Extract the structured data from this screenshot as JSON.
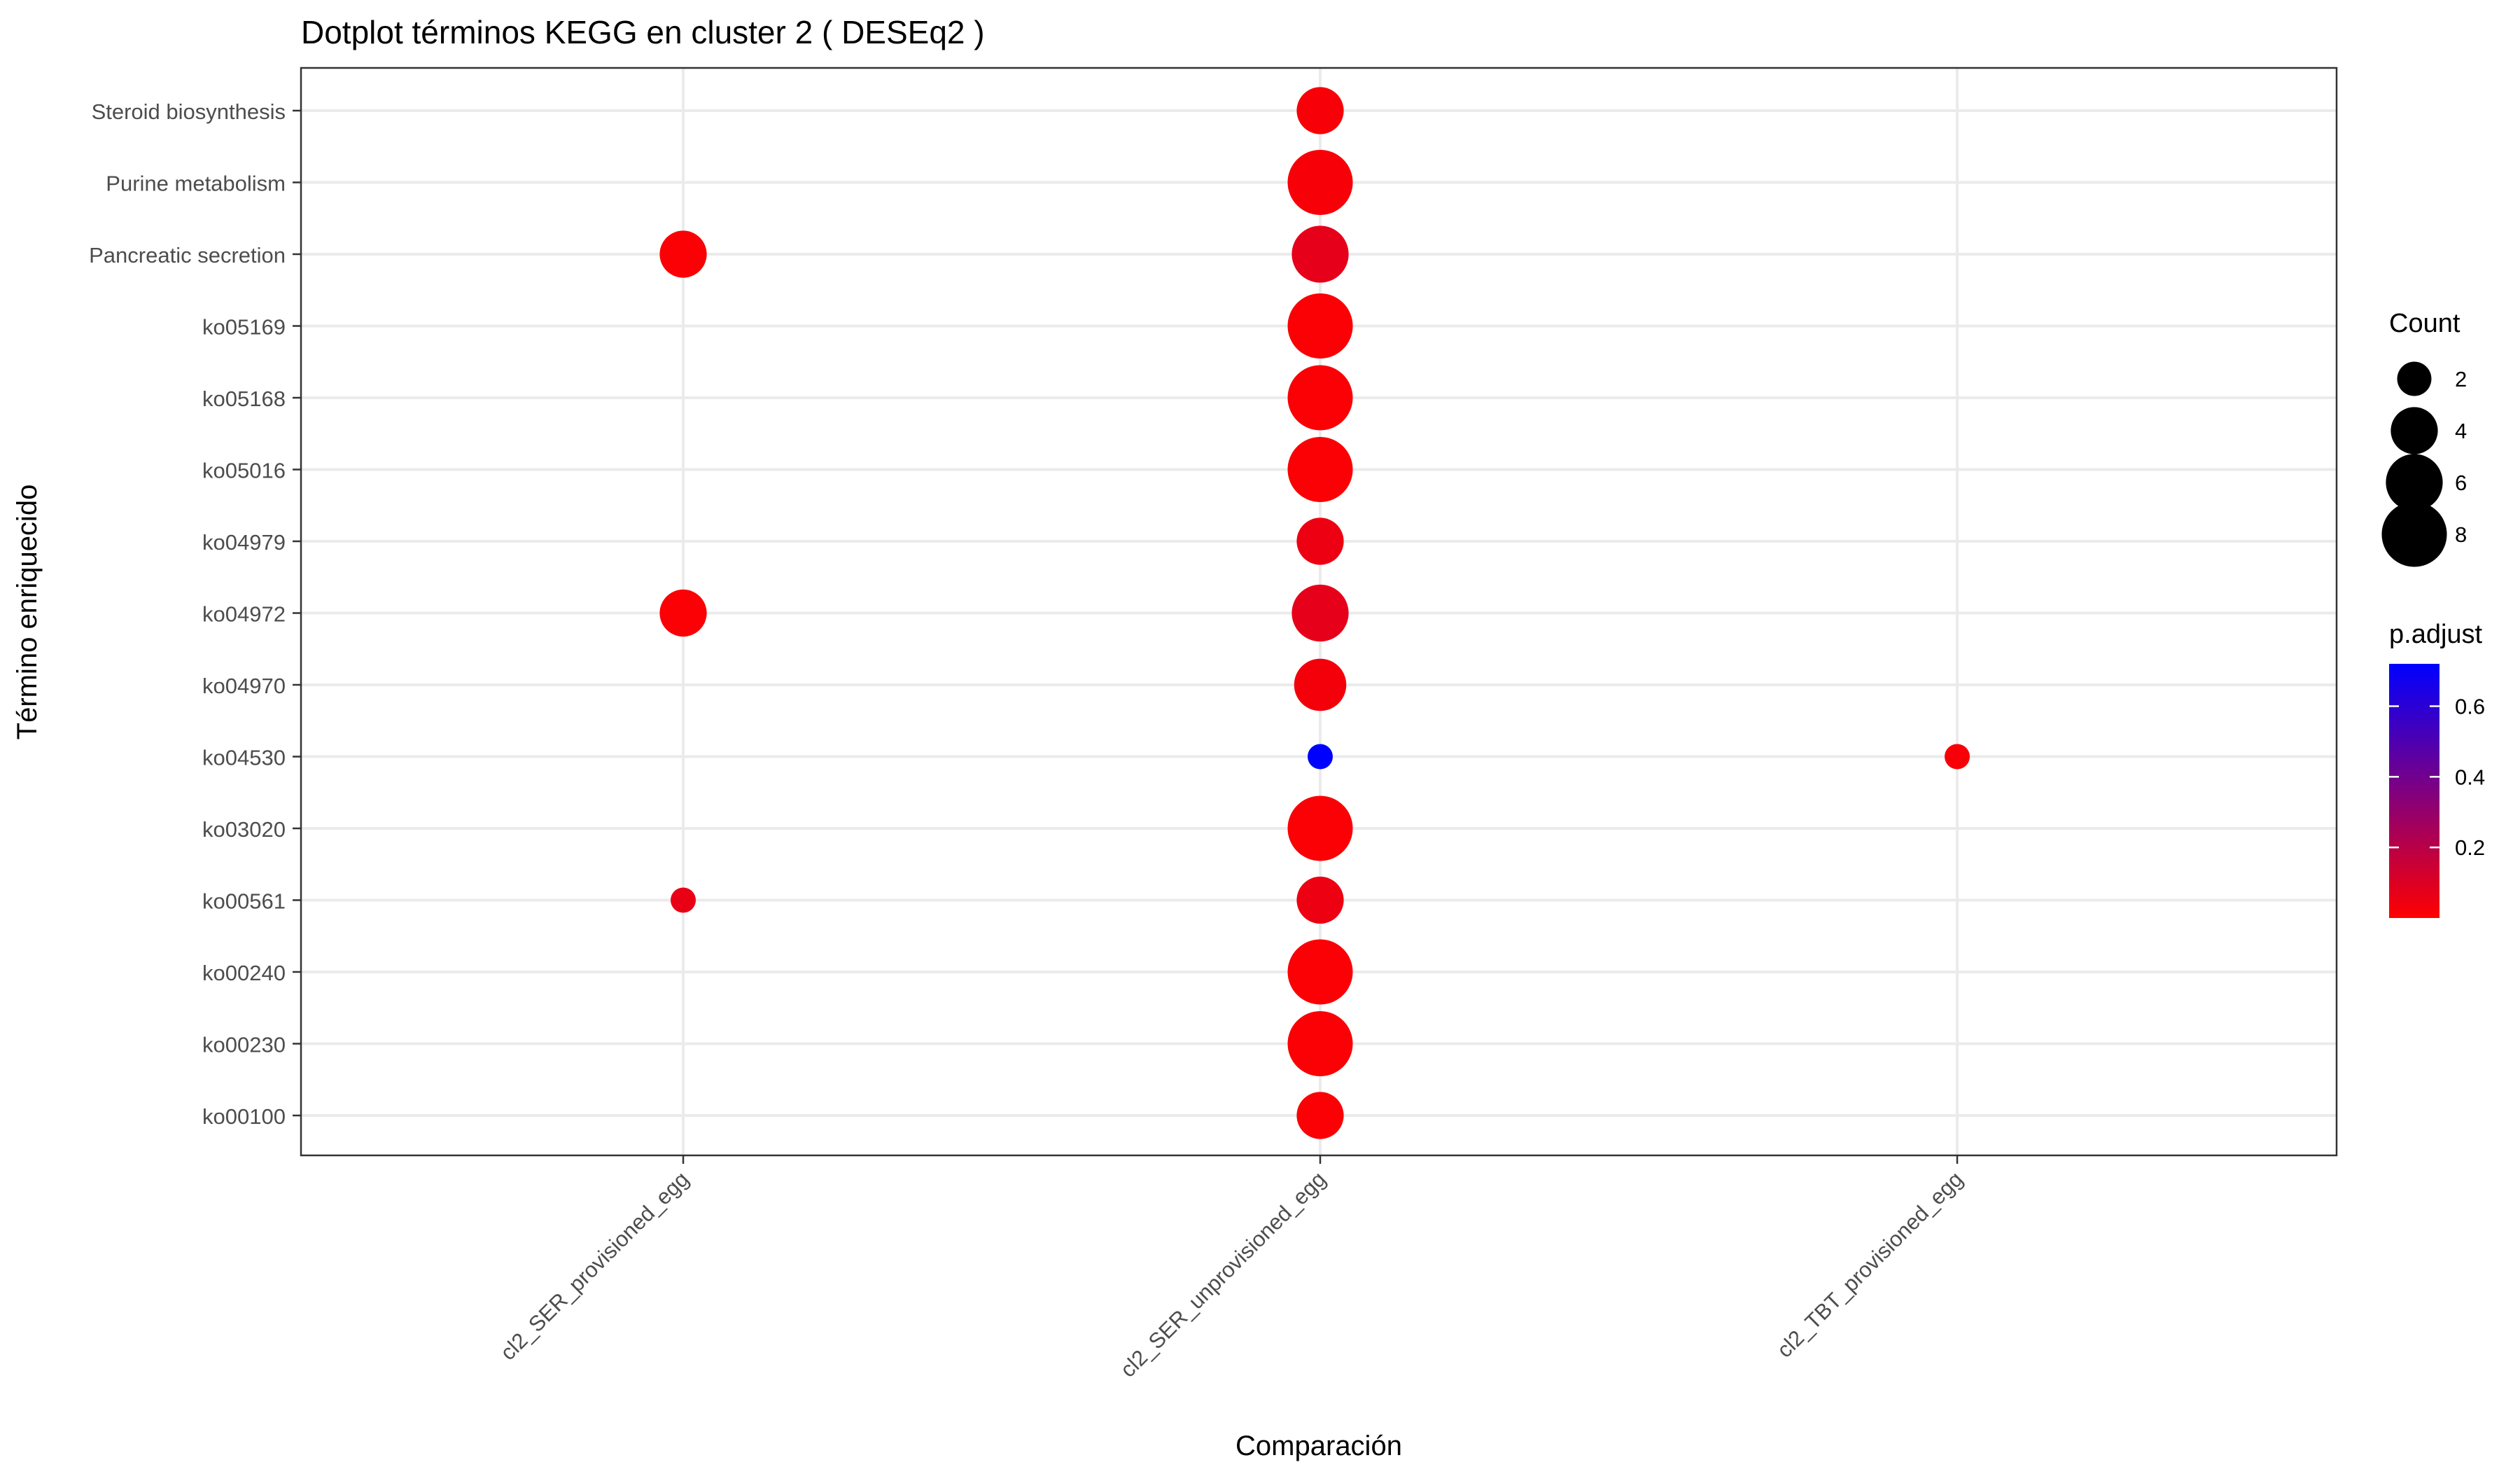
{
  "chart_data": {
    "type": "scatter",
    "subtype": "dotplot",
    "title": "Dotplot términos  KEGG  en cluster 2  ( DESEq2 )",
    "xlabel": "Comparación",
    "ylabel": "Término enriquecido",
    "x_categories": [
      "cl2_SER_provisioned_egg",
      "cl2_SER_unprovisioned_egg",
      "cl2_TBT_provisioned_egg"
    ],
    "y_categories": [
      "Steroid biosynthesis",
      "Purine metabolism",
      "Pancreatic secretion",
      "ko05169",
      "ko05168",
      "ko05016",
      "ko04979",
      "ko04972",
      "ko04970",
      "ko04530",
      "ko03020",
      "ko00561",
      "ko00240",
      "ko00230",
      "ko00100"
    ],
    "points": [
      {
        "x": "cl2_SER_provisioned_egg",
        "y": "Pancreatic secretion",
        "count": 4,
        "p_adjust": 0.01
      },
      {
        "x": "cl2_SER_provisioned_egg",
        "y": "ko04972",
        "count": 4,
        "p_adjust": 0.01
      },
      {
        "x": "cl2_SER_provisioned_egg",
        "y": "ko00561",
        "count": 1,
        "p_adjust": 0.06
      },
      {
        "x": "cl2_SER_unprovisioned_egg",
        "y": "Steroid biosynthesis",
        "count": 4,
        "p_adjust": 0.02
      },
      {
        "x": "cl2_SER_unprovisioned_egg",
        "y": "Purine metabolism",
        "count": 8,
        "p_adjust": 0.02
      },
      {
        "x": "cl2_SER_unprovisioned_egg",
        "y": "Pancreatic secretion",
        "count": 6,
        "p_adjust": 0.07
      },
      {
        "x": "cl2_SER_unprovisioned_egg",
        "y": "ko05169",
        "count": 8,
        "p_adjust": 0.01
      },
      {
        "x": "cl2_SER_unprovisioned_egg",
        "y": "ko05168",
        "count": 8,
        "p_adjust": 0.01
      },
      {
        "x": "cl2_SER_unprovisioned_egg",
        "y": "ko05016",
        "count": 8,
        "p_adjust": 0.01
      },
      {
        "x": "cl2_SER_unprovisioned_egg",
        "y": "ko04979",
        "count": 4,
        "p_adjust": 0.05
      },
      {
        "x": "cl2_SER_unprovisioned_egg",
        "y": "ko04972",
        "count": 6,
        "p_adjust": 0.07
      },
      {
        "x": "cl2_SER_unprovisioned_egg",
        "y": "ko04970",
        "count": 5,
        "p_adjust": 0.03
      },
      {
        "x": "cl2_SER_unprovisioned_egg",
        "y": "ko04530",
        "count": 1,
        "p_adjust": 0.72
      },
      {
        "x": "cl2_SER_unprovisioned_egg",
        "y": "ko03020",
        "count": 8,
        "p_adjust": 0.01
      },
      {
        "x": "cl2_SER_unprovisioned_egg",
        "y": "ko00561",
        "count": 4,
        "p_adjust": 0.05
      },
      {
        "x": "cl2_SER_unprovisioned_egg",
        "y": "ko00240",
        "count": 8,
        "p_adjust": 0.01
      },
      {
        "x": "cl2_SER_unprovisioned_egg",
        "y": "ko00230",
        "count": 8,
        "p_adjust": 0.01
      },
      {
        "x": "cl2_SER_unprovisioned_egg",
        "y": "ko00100",
        "count": 4,
        "p_adjust": 0.01
      },
      {
        "x": "cl2_TBT_provisioned_egg",
        "y": "ko04530",
        "count": 1,
        "p_adjust": 0.02
      }
    ],
    "size_legend": {
      "title": "Count",
      "breaks": [
        2,
        4,
        6,
        8
      ]
    },
    "color_legend": {
      "title": "p.adjust",
      "low_color": "#ff0000",
      "high_color": "#0000ff",
      "range": [
        0.0,
        0.72
      ],
      "breaks": [
        0.2,
        0.4,
        0.6
      ],
      "break_labels": [
        "0.2",
        "0.4",
        "0.6"
      ]
    },
    "grid": true,
    "legend_position": "right",
    "colors": {
      "grid": "#ebebeb",
      "border": "#333333",
      "text": "#000000",
      "tick_text": "#4d4d4d",
      "tick_mark": "#333333"
    }
  }
}
